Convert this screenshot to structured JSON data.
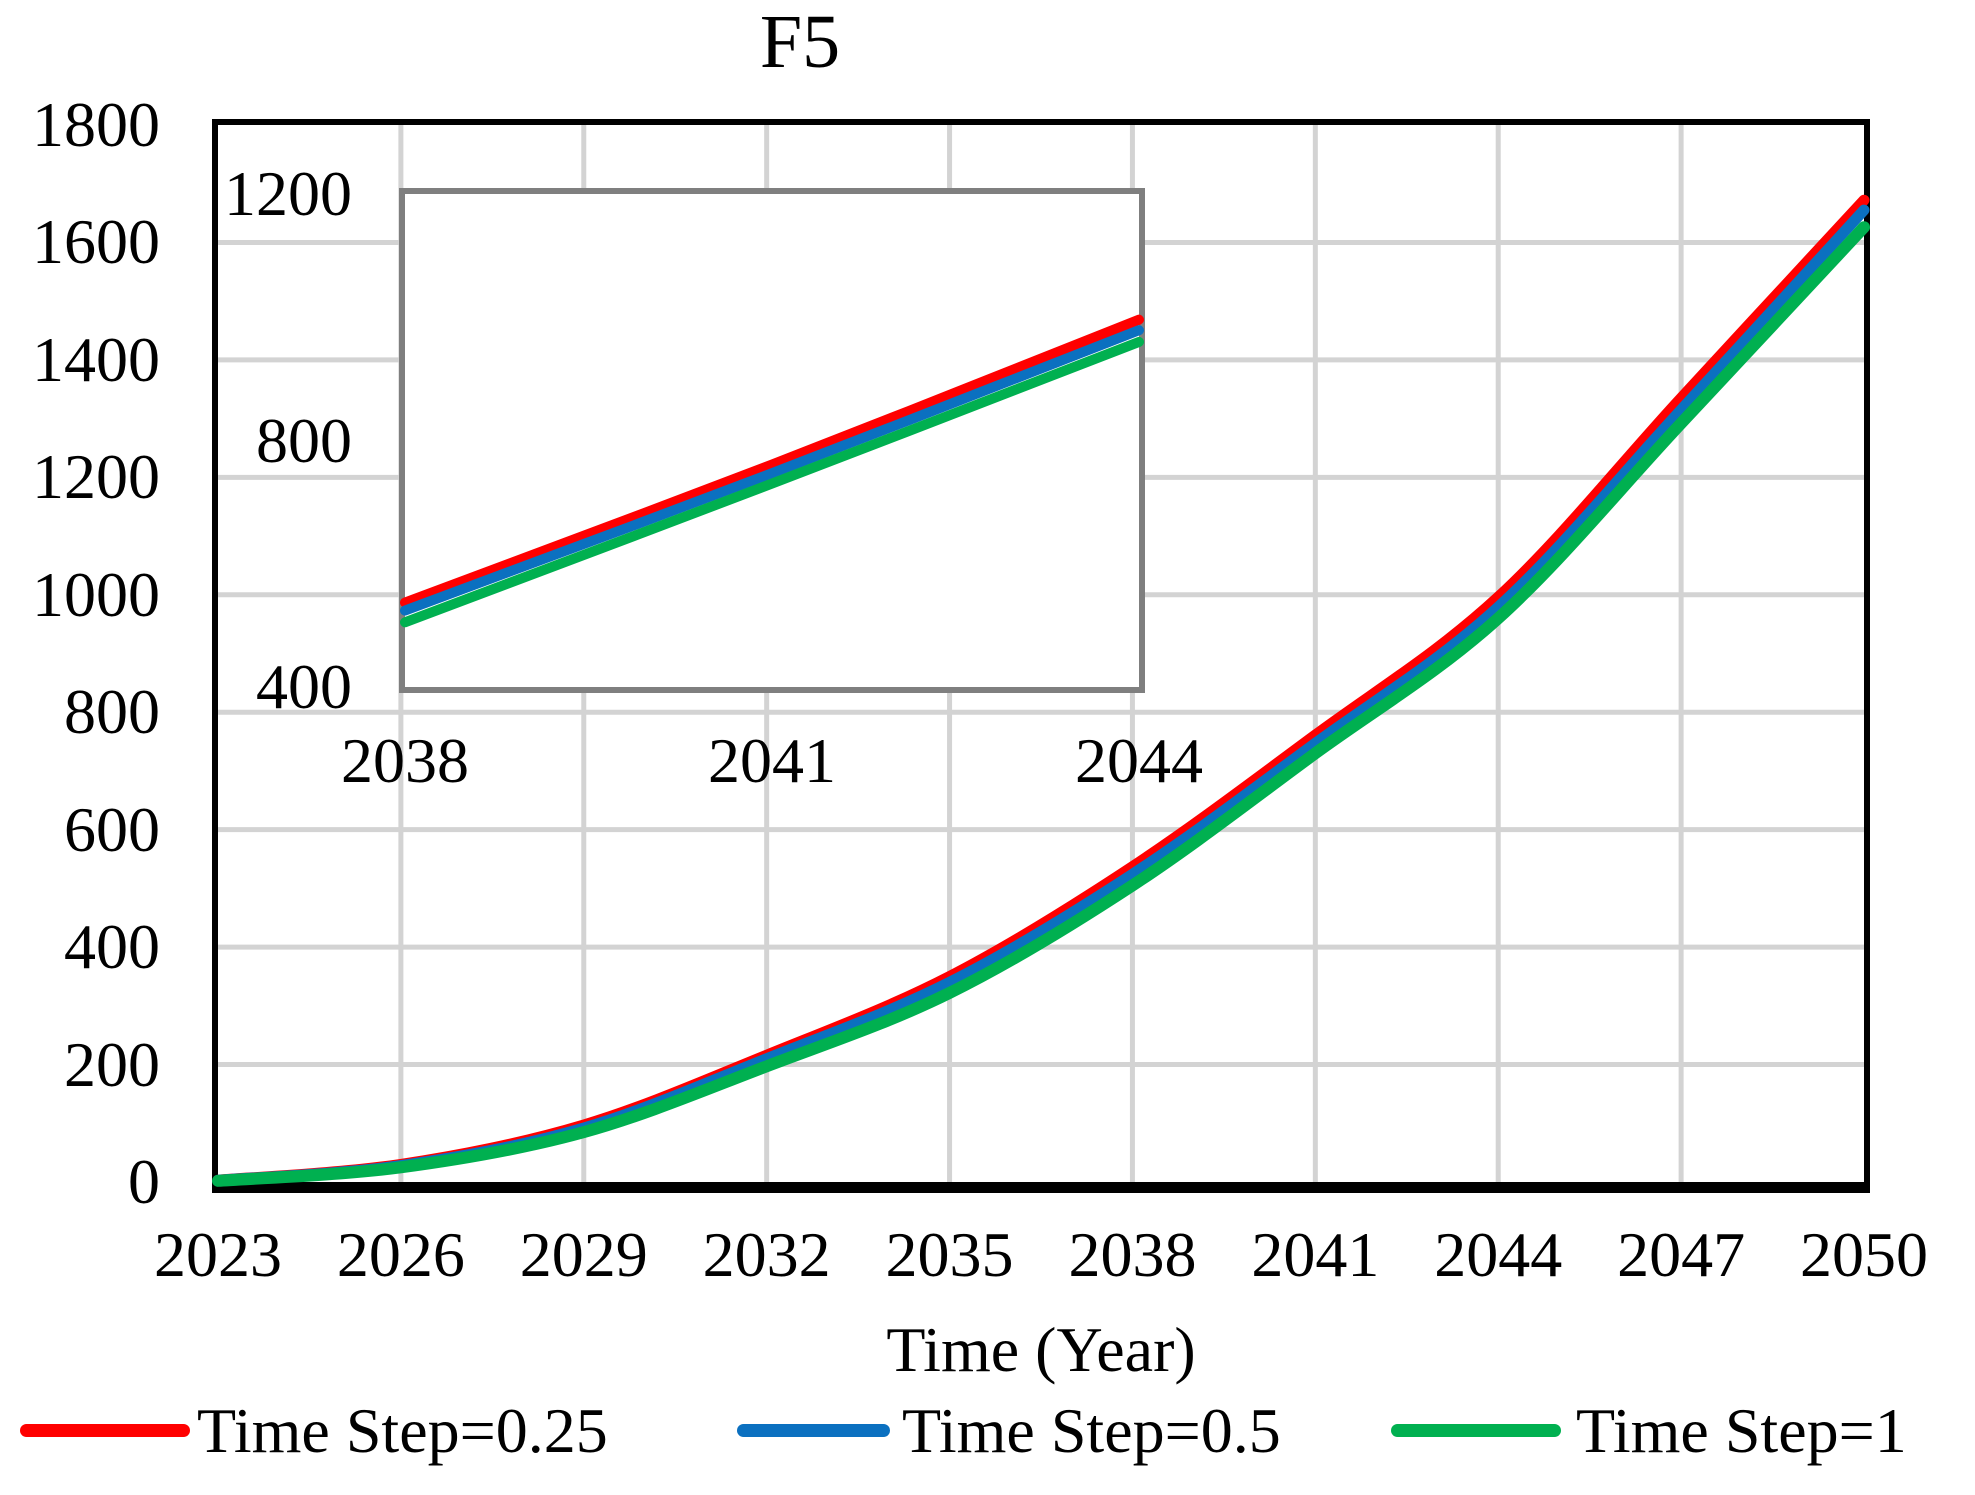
{
  "title": "F5",
  "axes": {
    "x_label": "Time (Year)",
    "x_ticks": [
      2023,
      2026,
      2029,
      2032,
      2035,
      2038,
      2041,
      2044,
      2047,
      2050
    ],
    "y_ticks": [
      0,
      200,
      400,
      600,
      800,
      1000,
      1200,
      1400,
      1600,
      1800
    ],
    "x_range": [
      2023,
      2050
    ],
    "y_range": [
      0,
      1800
    ]
  },
  "inset": {
    "x_ticks": [
      2038,
      2041,
      2044
    ],
    "y_ticks": [
      400,
      800,
      1200
    ],
    "x_range": [
      2038,
      2044
    ],
    "y_range": [
      400,
      1200
    ]
  },
  "legend": [
    {
      "label": "Time Step=0.25",
      "color": "#ff0000"
    },
    {
      "label": "Time Step=0.5",
      "color": "#0b70c0"
    },
    {
      "label": "Time Step=1",
      "color": "#00b050"
    }
  ],
  "colors": {
    "grid": "#d3d3d3",
    "axis": "#000000",
    "inset_border": "#7f7f7f"
  },
  "chart_data": {
    "type": "line",
    "title": "F5",
    "xlabel": "Time (Year)",
    "ylabel": "",
    "x": [
      2023,
      2026,
      2029,
      2032,
      2035,
      2038,
      2041,
      2044,
      2047,
      2050
    ],
    "series": [
      {
        "name": "Time Step=0.25",
        "color": "#ff0000",
        "values": [
          3,
          30,
          97,
          216,
          350,
          537,
          761,
          996,
          1335,
          1672
        ]
      },
      {
        "name": "Time Step=0.5",
        "color": "#0b70c0",
        "values": [
          3,
          28,
          92,
          210,
          340,
          524,
          747,
          979,
          1315,
          1655
        ]
      },
      {
        "name": "Time Step=1",
        "color": "#00b050",
        "values": [
          2,
          25,
          85,
          197,
          322,
          505,
          730,
          960,
          1292,
          1626
        ]
      }
    ],
    "xlim": [
      2023,
      2050
    ],
    "ylim": [
      0,
      1800
    ],
    "grid": true,
    "legend_position": "bottom",
    "inset": {
      "xlim": [
        2038,
        2044
      ],
      "ylim": [
        400,
        1200
      ]
    }
  }
}
